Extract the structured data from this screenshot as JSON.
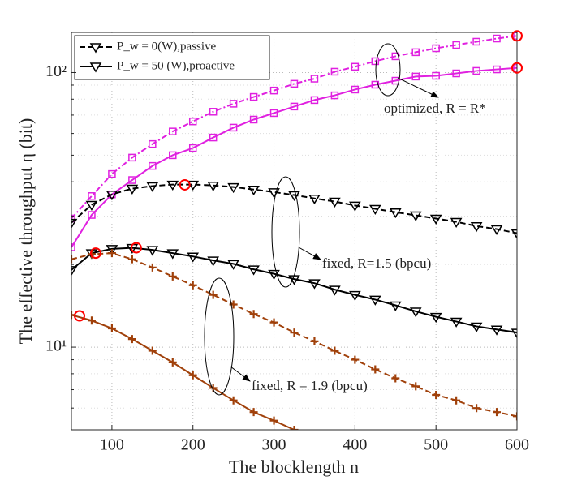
{
  "chart_data": {
    "type": "line",
    "xlabel": "The blocklength n",
    "ylabel": "The effective throughput η (bit)",
    "log_y": true,
    "grid": true,
    "xlim": [
      50,
      600
    ],
    "ylim": [
      5,
      140
    ],
    "xticks": [
      100,
      200,
      300,
      400,
      500,
      600
    ],
    "yticks": [
      {
        "value": 10,
        "label": "10¹"
      },
      {
        "value": 100,
        "label": "10²"
      }
    ],
    "y_minor_ticks": [
      6,
      7,
      8,
      9,
      20,
      30,
      40,
      50,
      60,
      70,
      80,
      90
    ],
    "x": [
      50,
      75,
      100,
      125,
      150,
      175,
      200,
      225,
      250,
      275,
      300,
      325,
      350,
      375,
      400,
      425,
      450,
      475,
      500,
      525,
      550,
      575,
      600
    ],
    "series": [
      {
        "color": "#e020e0",
        "dash": "dashdot",
        "marker": "square",
        "values": [
          29.4,
          35.5,
          42.7,
          49,
          54.9,
          61,
          66.4,
          72,
          77,
          81.5,
          86,
          91,
          95,
          100.7,
          105,
          110,
          114.6,
          118.6,
          122.6,
          126,
          129.5,
          133,
          136
        ]
      },
      {
        "color": "#e020e0",
        "dash": "solid",
        "marker": "square",
        "values": [
          23.1,
          30.3,
          36,
          40.6,
          45.7,
          50,
          53.1,
          58,
          63,
          67.4,
          71.2,
          75.2,
          79.4,
          82.6,
          86.7,
          90.3,
          93.4,
          96.7,
          97.3,
          99.3,
          101.4,
          102.7,
          104
        ]
      },
      {
        "color": "#000000",
        "dash": "dashed",
        "marker": "triangle",
        "values": [
          28.4,
          33,
          36,
          37.8,
          38.6,
          39.1,
          39.1,
          38.8,
          38.3,
          37.5,
          36.7,
          35.8,
          34.8,
          33.9,
          32.8,
          31.9,
          31,
          30.2,
          29.4,
          28.6,
          27.6,
          26.9,
          26
        ]
      },
      {
        "color": "#000000",
        "dash": "solid",
        "marker": "triangle",
        "values": [
          19.1,
          22,
          22.8,
          23,
          22.6,
          22,
          21.4,
          20.7,
          20.1,
          19.2,
          18.5,
          17.7,
          17.1,
          16.2,
          15.5,
          14.9,
          14.2,
          13.5,
          12.9,
          12.4,
          11.9,
          11.6,
          11.3
        ]
      },
      {
        "color": "#a0400a",
        "dash": "dashed",
        "marker": "plus",
        "values": [
          20.9,
          21.8,
          22,
          20.9,
          19.5,
          18.1,
          16.8,
          15.5,
          14.3,
          13.2,
          12.3,
          11.3,
          10.5,
          9.7,
          9,
          8.3,
          7.7,
          7.2,
          6.7,
          6.4,
          6,
          5.8,
          5.6
        ]
      },
      {
        "color": "#a0400a",
        "dash": "solid",
        "marker": "plus",
        "values": [
          13.1,
          12.5,
          11.7,
          10.7,
          9.7,
          8.8,
          7.9,
          7.1,
          6.4,
          5.8,
          5.4,
          5,
          null,
          null,
          null,
          null,
          null,
          null,
          null,
          null,
          null,
          null,
          null
        ]
      }
    ],
    "optimal_points": {
      "color": "#ff0000",
      "x": [
        600,
        600,
        190,
        130,
        80,
        60
      ],
      "y": [
        136,
        104,
        39,
        23,
        22,
        13
      ]
    },
    "legend": [
      {
        "label": "P_w = 0(W),passive",
        "dash": "dashed",
        "marker": "triangle",
        "color": "#000000"
      },
      {
        "label": "P_w = 50 (W),proactive",
        "dash": "solid",
        "marker": "triangle",
        "color": "#000000"
      }
    ],
    "legend_corner": "upper left",
    "annotations": [
      "optimized, R = R*",
      "fixed, R=1.5 (bpcu)",
      "fixed, R = 1.9 (bpcu)"
    ]
  }
}
